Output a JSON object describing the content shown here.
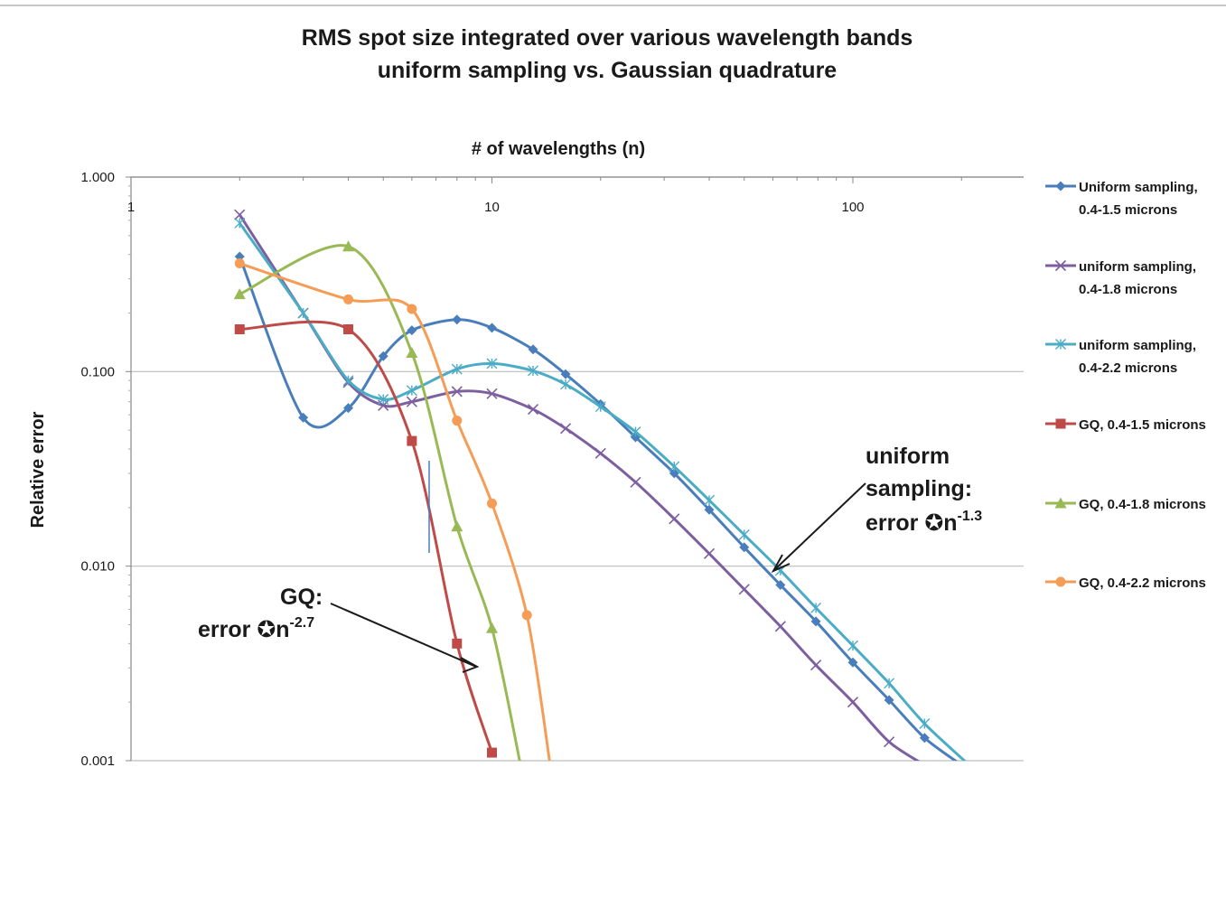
{
  "chart_data": {
    "type": "line",
    "title_line1": "RMS spot size integrated over various wavelength bands",
    "title_line2": "uniform sampling vs. Gaussian quadrature",
    "xlabel": "# of wavelengths (n)",
    "ylabel": "Relative error",
    "x_scale": "log",
    "y_scale": "log",
    "xlim": [
      1,
      200
    ],
    "ylim": [
      0.001,
      1.0
    ],
    "x_ticks": [
      {
        "value": 1,
        "label": "1"
      },
      {
        "value": 10,
        "label": "10"
      },
      {
        "value": 100,
        "label": "100"
      }
    ],
    "y_ticks": [
      {
        "value": 1.0,
        "label": "1.000"
      },
      {
        "value": 0.1,
        "label": "0.100"
      },
      {
        "value": 0.01,
        "label": "0.010"
      },
      {
        "value": 0.001,
        "label": "0.001"
      }
    ],
    "grid": "horizontal major",
    "legend_position": "right",
    "series": [
      {
        "name": "Uniform sampling, 0.4-1.5 microns",
        "legend_line1": "Uniform sampling,",
        "legend_line2": "0.4-1.5 microns",
        "color": "#4A7EBB",
        "marker": "diamond",
        "x": [
          2,
          3,
          4,
          5,
          6,
          8,
          10,
          13,
          16,
          20,
          25,
          32,
          40,
          50,
          63,
          79,
          100,
          126,
          158,
          200
        ],
        "y": [
          0.39,
          0.058,
          0.065,
          0.12,
          0.163,
          0.185,
          0.168,
          0.13,
          0.097,
          0.068,
          0.046,
          0.03,
          0.0195,
          0.0125,
          0.008,
          0.0052,
          0.0032,
          0.00205,
          0.00131,
          0.00095
        ]
      },
      {
        "name": "uniform sampling, 0.4-1.8 microns",
        "legend_line1": "uniform sampling,",
        "legend_line2": "0.4-1.8 microns",
        "color": "#7D5FA0",
        "marker": "x",
        "x": [
          2,
          3,
          4,
          5,
          6,
          8,
          10,
          13,
          16,
          20,
          25,
          32,
          40,
          50,
          63,
          79,
          100,
          126,
          158
        ],
        "y": [
          0.64,
          0.2,
          0.088,
          0.067,
          0.07,
          0.079,
          0.077,
          0.064,
          0.051,
          0.038,
          0.027,
          0.0175,
          0.0116,
          0.0076,
          0.0049,
          0.0031,
          0.002,
          0.00125,
          0.00095
        ]
      },
      {
        "name": "uniform sampling, 0.4-2.2 microns",
        "legend_line1": "uniform sampling,",
        "legend_line2": "0.4-2.2 microns",
        "color": "#4BACC6",
        "marker": "star",
        "x": [
          2,
          3,
          4,
          5,
          6,
          8,
          10,
          13,
          16,
          20,
          25,
          32,
          40,
          50,
          63,
          79,
          100,
          126,
          158,
          210
        ],
        "y": [
          0.58,
          0.2,
          0.09,
          0.072,
          0.08,
          0.103,
          0.11,
          0.101,
          0.086,
          0.066,
          0.049,
          0.0325,
          0.0218,
          0.0145,
          0.0095,
          0.0061,
          0.0039,
          0.0025,
          0.00155,
          0.00095
        ]
      },
      {
        "name": "GQ, 0.4-1.5 microns",
        "legend_line1": "GQ, 0.4-1.5 microns",
        "legend_line2": "",
        "color": "#BE4B48",
        "marker": "square",
        "x": [
          2,
          4,
          6,
          8,
          10
        ],
        "y": [
          0.165,
          0.165,
          0.044,
          0.004,
          0.0011
        ]
      },
      {
        "name": "GQ, 0.4-1.8 microns",
        "legend_line1": "GQ, 0.4-1.8 microns",
        "legend_line2": "",
        "color": "#98B954",
        "marker": "triangle",
        "x": [
          2,
          4,
          6,
          8,
          10,
          12
        ],
        "y": [
          0.25,
          0.44,
          0.125,
          0.016,
          0.0048,
          0.00095
        ]
      },
      {
        "name": "GQ, 0.4-2.2 microns",
        "legend_line1": "GQ, 0.4-2.2 microns",
        "legend_line2": "",
        "color": "#F59D56",
        "marker": "circle",
        "x": [
          2,
          4,
          6,
          8,
          10,
          12.5,
          14.5
        ],
        "y": [
          0.36,
          0.235,
          0.21,
          0.056,
          0.021,
          0.0056,
          0.00095
        ]
      }
    ],
    "annotations": {
      "uniform_line1": "uniform",
      "uniform_line2": "sampling:",
      "uniform_line3_prefix": "error ",
      "uniform_line3_exponent": "-1.3",
      "gq_line1": "GQ:",
      "gq_line2_prefix": "error ",
      "gq_line2_exponent": "-2.7",
      "proportional_glyph": "✪",
      "n_letter": "n"
    }
  }
}
